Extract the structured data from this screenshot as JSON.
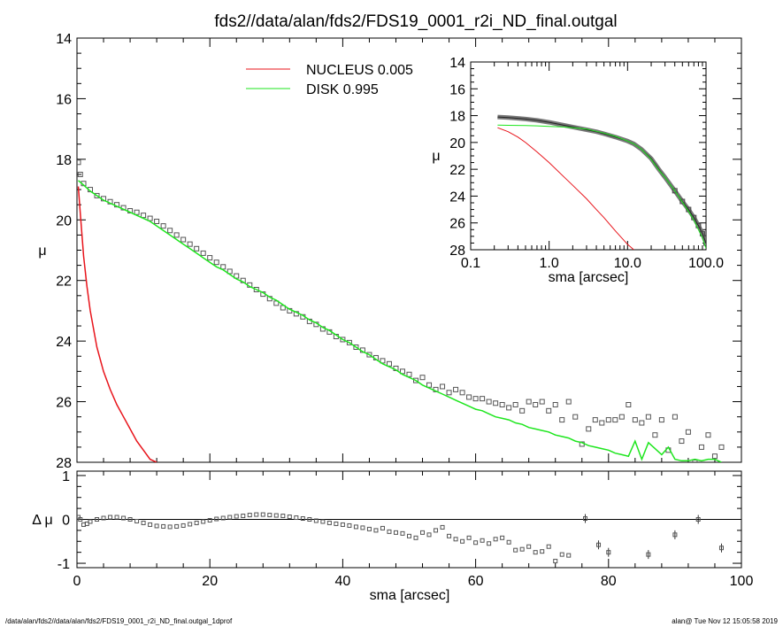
{
  "colors": {
    "nucleus": "#e8141b",
    "disk": "#1ee61e",
    "data": "#555555",
    "axis": "#000000"
  },
  "footer": {
    "left": "/data/alan/fds2//data/alan/fds2/FDS19_0001_r2i_ND_final.outgal_1dprof",
    "right": "alan@  Tue Nov 12 15:05:58 2019"
  },
  "chart_data": [
    {
      "type": "scatter",
      "title": "fds2//data/alan/fds2/FDS19_0001_r2i_ND_final.outgal",
      "xlabel": "",
      "ylabel": "μ",
      "xlim": [
        0,
        100
      ],
      "ylim": [
        28,
        14
      ],
      "y_inverted": true,
      "yticks": [
        14,
        16,
        18,
        20,
        22,
        24,
        26,
        28
      ],
      "legend": {
        "placement": "top-center",
        "entries": [
          {
            "label": "NUCLEUS",
            "value": "0.005",
            "color": "#e8141b"
          },
          {
            "label": "DISK",
            "value": "0.995",
            "color": "#1ee61e"
          }
        ]
      },
      "series": [
        {
          "name": "data",
          "style": "squares",
          "x": [
            0.2,
            0.5,
            1,
            2,
            3,
            4,
            5,
            6,
            7,
            8,
            9,
            10,
            11,
            12,
            13,
            14,
            15,
            16,
            17,
            18,
            19,
            20,
            21,
            22,
            23,
            24,
            25,
            26,
            27,
            28,
            29,
            30,
            31,
            32,
            33,
            34,
            35,
            36,
            37,
            38,
            39,
            40,
            41,
            42,
            43,
            44,
            45,
            46,
            47,
            48,
            49,
            50,
            51,
            52,
            53,
            54,
            55,
            56,
            57,
            58,
            59,
            60,
            61,
            62,
            63,
            64,
            65,
            66,
            67,
            68,
            69,
            70,
            71,
            72,
            73,
            74,
            75,
            76,
            77,
            78,
            79,
            80,
            81,
            82,
            83,
            84,
            85,
            86,
            87,
            88,
            89,
            90,
            91,
            92,
            93,
            94,
            95,
            96,
            97
          ],
          "y": [
            18.1,
            18.5,
            18.8,
            19.0,
            19.2,
            19.3,
            19.4,
            19.5,
            19.6,
            19.7,
            19.75,
            19.85,
            19.95,
            20.05,
            20.2,
            20.35,
            20.5,
            20.65,
            20.8,
            20.95,
            21.1,
            21.25,
            21.4,
            21.55,
            21.7,
            21.85,
            22.0,
            22.15,
            22.3,
            22.45,
            22.6,
            22.75,
            22.9,
            23.0,
            23.1,
            23.2,
            23.35,
            23.45,
            23.6,
            23.7,
            23.85,
            23.95,
            24.05,
            24.2,
            24.3,
            24.45,
            24.55,
            24.65,
            24.75,
            24.9,
            25.0,
            25.1,
            25.3,
            25.2,
            25.45,
            25.6,
            25.5,
            25.7,
            25.6,
            25.7,
            25.85,
            25.9,
            25.9,
            26.0,
            26.05,
            26.1,
            26.2,
            26.1,
            26.3,
            26.0,
            26.1,
            26.0,
            26.3,
            26.1,
            26.6,
            26.0,
            26.5,
            27.4,
            26.9,
            26.6,
            26.7,
            26.6,
            26.6,
            26.5,
            26.1,
            26.6,
            26.7,
            26.5,
            27.1,
            26.6,
            27.6,
            26.5,
            27.3,
            27.0,
            28.0,
            27.5,
            27.1,
            27.8,
            27.5
          ]
        },
        {
          "name": "NUCLEUS",
          "style": "line",
          "x": [
            0.2,
            0.5,
            1,
            1.5,
            2,
            3,
            4,
            5,
            6,
            7,
            8,
            9,
            10,
            11,
            12
          ],
          "y": [
            18.9,
            19.8,
            21.2,
            22.2,
            23.0,
            24.2,
            25.0,
            25.6,
            26.1,
            26.5,
            26.9,
            27.3,
            27.6,
            27.9,
            28.0
          ]
        },
        {
          "name": "DISK",
          "style": "line",
          "x": [
            0.2,
            1,
            2,
            3,
            4,
            5,
            6,
            7,
            8,
            9,
            10,
            11,
            12,
            13,
            14,
            15,
            16,
            17,
            18,
            19,
            20,
            21,
            22,
            23,
            24,
            25,
            26,
            27,
            28,
            29,
            30,
            31,
            32,
            33,
            34,
            35,
            36,
            37,
            38,
            39,
            40,
            41,
            42,
            43,
            44,
            45,
            46,
            47,
            48,
            49,
            50,
            51,
            52,
            53,
            54,
            55,
            56,
            57,
            58,
            59,
            60,
            61,
            62,
            63,
            64,
            65,
            66,
            67,
            68,
            69,
            70,
            71,
            72,
            73,
            74,
            75,
            76,
            77,
            78,
            79,
            80,
            81,
            82,
            83,
            84,
            85,
            86,
            87,
            88,
            89,
            90,
            91,
            92,
            93,
            94,
            95,
            96,
            97
          ],
          "y": [
            18.7,
            18.85,
            19.05,
            19.2,
            19.35,
            19.45,
            19.55,
            19.65,
            19.75,
            19.85,
            19.95,
            20.05,
            20.2,
            20.35,
            20.5,
            20.65,
            20.8,
            20.95,
            21.1,
            21.25,
            21.4,
            21.55,
            21.65,
            21.8,
            21.95,
            22.05,
            22.2,
            22.3,
            22.4,
            22.55,
            22.65,
            22.8,
            22.95,
            23.05,
            23.15,
            23.3,
            23.4,
            23.55,
            23.65,
            23.8,
            23.95,
            24.05,
            24.2,
            24.35,
            24.45,
            24.6,
            24.75,
            24.85,
            24.95,
            25.1,
            25.2,
            25.3,
            25.45,
            25.55,
            25.65,
            25.75,
            25.85,
            25.95,
            26.05,
            26.15,
            26.25,
            26.3,
            26.4,
            26.5,
            26.55,
            26.6,
            26.7,
            26.75,
            26.85,
            26.9,
            26.95,
            27.0,
            27.1,
            27.15,
            27.2,
            27.3,
            27.35,
            27.45,
            27.5,
            27.55,
            27.6,
            27.7,
            27.75,
            27.8,
            27.3,
            27.9,
            27.35,
            27.55,
            27.75,
            27.5,
            27.9,
            27.95,
            27.95,
            27.9,
            27.95,
            27.9,
            27.9,
            28.0
          ]
        }
      ]
    },
    {
      "type": "scatter",
      "title": "",
      "xlabel": "sma [arcsec]",
      "ylabel": "Δ μ",
      "xlim": [
        0,
        100
      ],
      "ylim": [
        -1.1,
        1.1
      ],
      "xticks": [
        0,
        20,
        40,
        60,
        80,
        100
      ],
      "yticks": [
        -1,
        0,
        1
      ],
      "zero_line": true,
      "series": [
        {
          "name": "residual",
          "style": "squares",
          "x": [
            0.2,
            0.5,
            1,
            1.5,
            2,
            3,
            4,
            5,
            6,
            7,
            8,
            9,
            10,
            11,
            12,
            13,
            14,
            15,
            16,
            17,
            18,
            19,
            20,
            21,
            22,
            23,
            24,
            25,
            26,
            27,
            28,
            29,
            30,
            31,
            32,
            33,
            34,
            35,
            36,
            37,
            38,
            39,
            40,
            41,
            42,
            43,
            44,
            45,
            46,
            47,
            48,
            49,
            50,
            51,
            52,
            53,
            54,
            55,
            56,
            57,
            58,
            59,
            60,
            61,
            62,
            63,
            64,
            65,
            66,
            67,
            68,
            69,
            70,
            71,
            72,
            73,
            74,
            76.5,
            78.5,
            80,
            86,
            90,
            93.5,
            97
          ],
          "y": [
            0.05,
            0.0,
            -0.12,
            -0.1,
            -0.05,
            0.0,
            0.03,
            0.05,
            0.05,
            0.03,
            0.0,
            -0.04,
            -0.08,
            -0.12,
            -0.15,
            -0.16,
            -0.17,
            -0.16,
            -0.14,
            -0.11,
            -0.08,
            -0.05,
            -0.02,
            0.01,
            0.03,
            0.05,
            0.07,
            0.08,
            0.1,
            0.11,
            0.11,
            0.1,
            0.09,
            0.08,
            0.06,
            0.04,
            0.02,
            0.0,
            -0.03,
            -0.05,
            -0.08,
            -0.1,
            -0.12,
            -0.14,
            -0.17,
            -0.19,
            -0.22,
            -0.25,
            -0.2,
            -0.28,
            -0.3,
            -0.32,
            -0.38,
            -0.42,
            -0.3,
            -0.35,
            -0.25,
            -0.18,
            -0.38,
            -0.45,
            -0.5,
            -0.42,
            -0.53,
            -0.48,
            -0.55,
            -0.45,
            -0.42,
            -0.52,
            -0.7,
            -0.68,
            -0.62,
            -0.75,
            -0.73,
            -0.62,
            -0.95,
            -0.8,
            -0.82,
            0.02,
            -0.58,
            -0.75,
            -0.8,
            -0.35,
            0.0,
            -0.65
          ]
        }
      ]
    },
    {
      "type": "line",
      "title": "",
      "xlabel": "sma [arcsec]",
      "ylabel": "μ",
      "xscale": "log",
      "xlim": [
        0.1,
        100
      ],
      "ylim": [
        28,
        14
      ],
      "y_inverted": true,
      "xtick_labels": [
        "0.1",
        "1.0",
        "10.0",
        "100.0"
      ],
      "yticks": [
        14,
        16,
        18,
        20,
        22,
        24,
        26,
        28
      ],
      "series": [
        {
          "name": "data",
          "style": "thick-squares",
          "x": [
            0.22,
            0.3,
            0.4,
            0.5,
            0.7,
            1,
            1.5,
            2,
            3,
            4,
            5,
            7,
            10,
            12,
            15,
            20,
            25,
            30,
            40,
            50,
            60,
            70,
            80,
            90,
            100
          ],
          "y": [
            18.1,
            18.15,
            18.2,
            18.25,
            18.35,
            18.5,
            18.7,
            18.85,
            19.05,
            19.2,
            19.35,
            19.6,
            19.9,
            20.1,
            20.5,
            21.2,
            22.0,
            22.6,
            23.6,
            24.4,
            25.0,
            25.6,
            26.2,
            26.8,
            27.5
          ]
        },
        {
          "name": "NUCLEUS",
          "style": "line",
          "x": [
            0.22,
            0.3,
            0.4,
            0.5,
            0.7,
            1,
            1.5,
            2,
            3,
            4,
            5,
            7,
            10,
            12
          ],
          "y": [
            18.9,
            19.2,
            19.6,
            20.0,
            20.7,
            21.5,
            22.5,
            23.2,
            24.2,
            25.0,
            25.6,
            26.6,
            27.6,
            28.0
          ]
        },
        {
          "name": "DISK",
          "style": "line",
          "x": [
            0.22,
            0.3,
            0.5,
            0.7,
            1,
            1.5,
            2,
            3,
            5,
            7,
            10,
            12,
            15,
            20,
            25,
            30,
            40,
            50,
            60,
            70,
            80,
            90,
            100
          ],
          "y": [
            18.7,
            18.72,
            18.74,
            18.76,
            18.8,
            18.85,
            18.9,
            19.0,
            19.3,
            19.55,
            19.9,
            20.1,
            20.5,
            21.25,
            22.05,
            22.6,
            23.6,
            24.45,
            25.15,
            25.8,
            26.5,
            27.1,
            27.9
          ]
        }
      ]
    }
  ]
}
